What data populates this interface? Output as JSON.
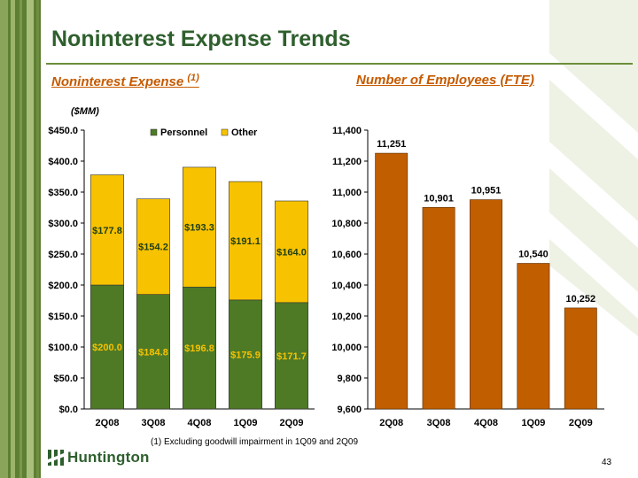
{
  "title": "Noninterest Expense Trends",
  "left_heading": "Noninterest Expense",
  "left_heading_note": "(1)",
  "right_heading": "Number of Employees (FTE)",
  "unit_label": "($MM)",
  "footnote": "(1)   Excluding goodwill impairment in 1Q09 and 2Q09",
  "page_number": "43",
  "logo_text": "Huntington",
  "colors": {
    "personnel": "#4e7a26",
    "other": "#f7c200",
    "fte_bar": "#c05e00",
    "brand_green": "#2e5f2d",
    "heading_orange": "#c65a00"
  },
  "chart_data": [
    {
      "type": "bar",
      "stacked": true,
      "categories": [
        "2Q08",
        "3Q08",
        "4Q08",
        "1Q09",
        "2Q09"
      ],
      "series": [
        {
          "name": "Personnel",
          "values": [
            200.0,
            184.8,
            196.8,
            175.9,
            171.7
          ],
          "labels": [
            "$200.0",
            "$184.8",
            "$196.8",
            "$175.9",
            "$171.7"
          ]
        },
        {
          "name": "Other",
          "values": [
            177.8,
            154.2,
            193.3,
            191.1,
            164.0
          ],
          "labels": [
            "$177.8",
            "$154.2",
            "$193.3",
            "$191.1",
            "$164.0"
          ]
        }
      ],
      "ylim": [
        0,
        450
      ],
      "yticks": [
        "$0.0",
        "$50.0",
        "$100.0",
        "$150.0",
        "$200.0",
        "$250.0",
        "$300.0",
        "$350.0",
        "$400.0",
        "$450.0"
      ],
      "legend_position": "top"
    },
    {
      "type": "bar",
      "categories": [
        "2Q08",
        "3Q08",
        "4Q08",
        "1Q09",
        "2Q09"
      ],
      "values": [
        11251,
        10901,
        10951,
        10540,
        10252
      ],
      "labels": [
        "11,251",
        "10,901",
        "10,951",
        "10,540",
        "10,252"
      ],
      "ylim": [
        9600,
        11400
      ],
      "yticks": [
        "9,600",
        "9,800",
        "10,000",
        "10,200",
        "10,400",
        "10,600",
        "10,800",
        "11,000",
        "11,200",
        "11,400"
      ]
    }
  ]
}
